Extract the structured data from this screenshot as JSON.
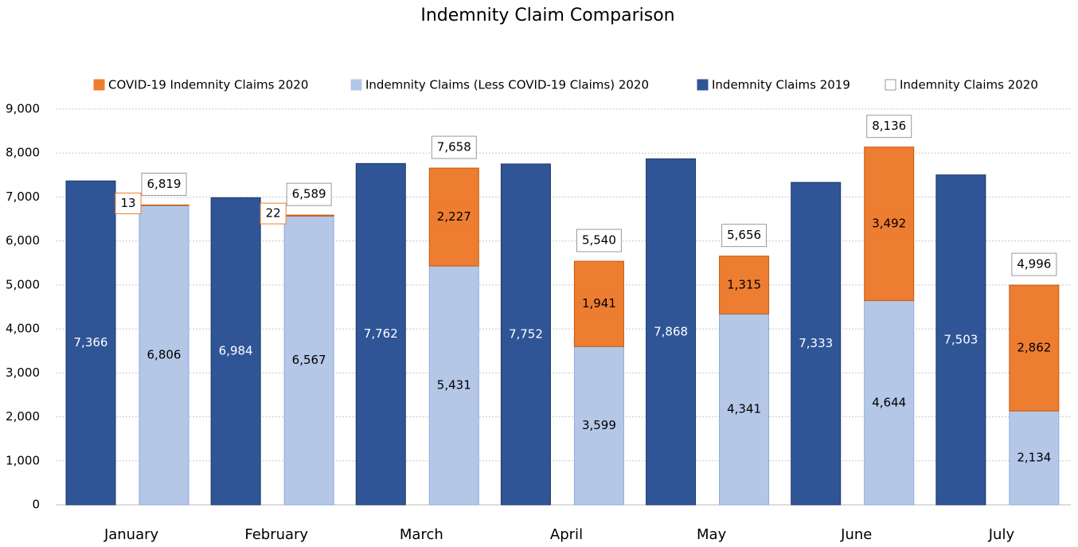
{
  "chart_data": {
    "type": "bar",
    "title": "Indemnity Claim Comparison",
    "categories": [
      "January",
      "February",
      "March",
      "April",
      "May",
      "June",
      "July"
    ],
    "series": [
      {
        "name": "COVID-19 Indemnity Claims 2020",
        "color": "#ed7d31",
        "stack": "2020",
        "values": [
          13,
          22,
          2227,
          1941,
          1315,
          3492,
          2862
        ],
        "value_labels": [
          "13",
          "22",
          "2,227",
          "1,941",
          "1,315",
          "3,492",
          "2,862"
        ]
      },
      {
        "name": "Indemnity Claims (Less COVID-19 Claims) 2020",
        "color": "#b4c7e7",
        "stack": "2020",
        "values": [
          6806,
          6567,
          5431,
          3599,
          4341,
          4644,
          2134
        ],
        "value_labels": [
          "6,806",
          "6,567",
          "5,431",
          "3,599",
          "4,341",
          "4,644",
          "2,134"
        ]
      },
      {
        "name": "Indemnity Claims 2019",
        "color": "#2f5597",
        "stack": "2019",
        "values": [
          7366,
          6984,
          7762,
          7752,
          7868,
          7333,
          7503
        ],
        "value_labels": [
          "7,366",
          "6,984",
          "7,762",
          "7,752",
          "7,868",
          "7,333",
          "7,503"
        ]
      },
      {
        "name": "Indemnity Claims 2020",
        "color": "#ffffff",
        "stack": "total",
        "values": [
          6819,
          6589,
          7658,
          5540,
          5656,
          8136,
          4996
        ],
        "value_labels": [
          "6,819",
          "6,589",
          "7,658",
          "5,540",
          "5,656",
          "8,136",
          "4,996"
        ]
      }
    ],
    "ylim": [
      0,
      9000
    ],
    "yticks": [
      0,
      {
        "value": 1000,
        "label": "1,000"
      },
      {
        "value": 2000,
        "label": "2,000"
      },
      {
        "value": 3000,
        "label": "3,000"
      },
      {
        "value": 4000,
        "label": "4,000"
      },
      {
        "value": 5000,
        "label": "5,000"
      },
      {
        "value": 6000,
        "label": "6,000"
      },
      {
        "value": 7000,
        "label": "7,000"
      },
      {
        "value": 8000,
        "label": "8,000"
      },
      {
        "value": 9000,
        "label": "9,000"
      }
    ],
    "grid": true,
    "legend": "top"
  }
}
